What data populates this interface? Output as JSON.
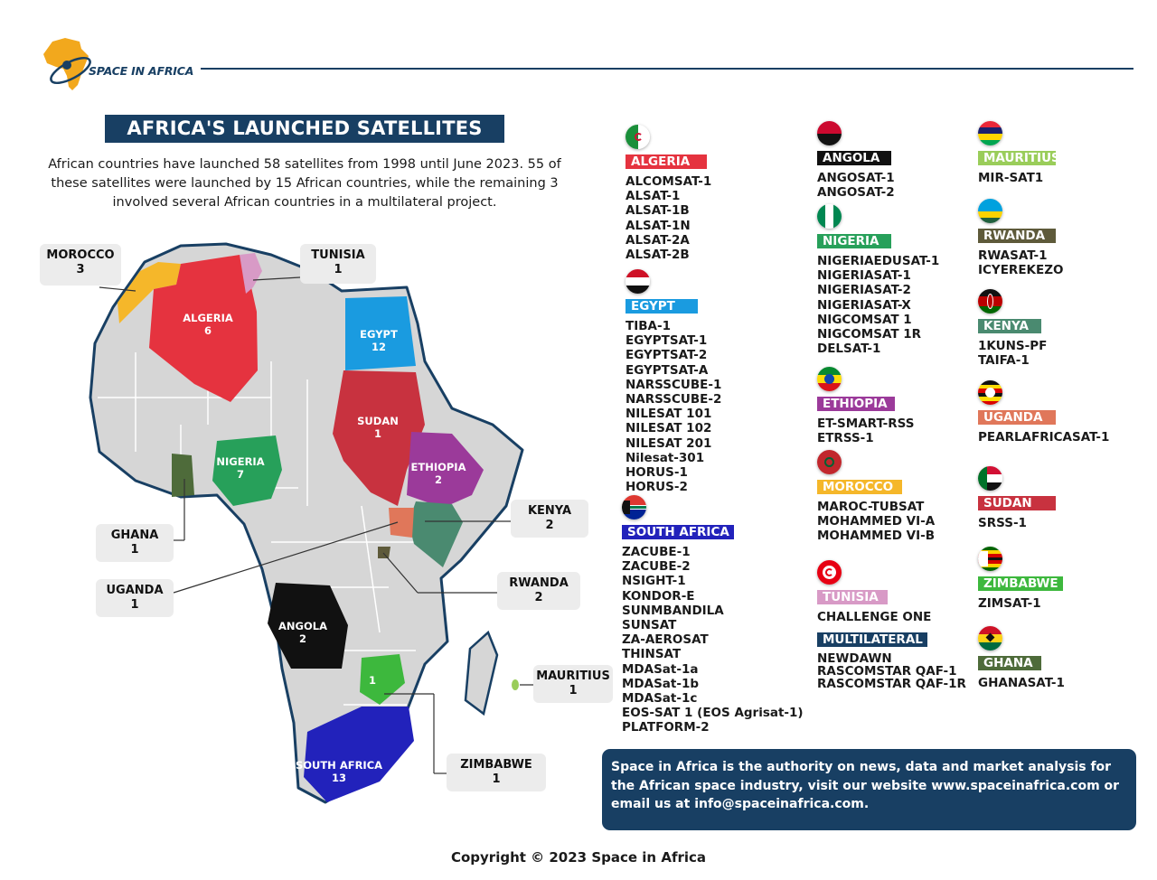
{
  "brand": {
    "name": "SPACE IN AFRICA"
  },
  "title": "AFRICA'S LAUNCHED SATELLITES",
  "intro": "African countries have launched 58 satellites from 1998 until June 2023. 55 of these satellites were launched by 15 African countries, while the remaining 3 involved several African countries in a multilateral project.",
  "map_labels": {
    "algeria": {
      "name": "ALGERIA",
      "count": "6"
    },
    "egypt": {
      "name": "EGYPT",
      "count": "12"
    },
    "sudan": {
      "name": "SUDAN",
      "count": "1"
    },
    "ethiopia": {
      "name": "ETHIOPIA",
      "count": "2"
    },
    "nigeria": {
      "name": "NIGERIA",
      "count": "7"
    },
    "angola": {
      "name": "ANGOLA",
      "count": "2"
    },
    "south_africa": {
      "name": "SOUTH AFRICA",
      "count": "13"
    },
    "zimbabwe": {
      "count": "1"
    }
  },
  "callouts": {
    "morocco": {
      "name": "MOROCCO",
      "count": "3"
    },
    "tunisia": {
      "name": "TUNISIA",
      "count": "1"
    },
    "ghana": {
      "name": "GHANA",
      "count": "1"
    },
    "uganda": {
      "name": "UGANDA",
      "count": "1"
    },
    "kenya": {
      "name": "KENYA",
      "count": "2"
    },
    "rwanda": {
      "name": "RWANDA",
      "count": "2"
    },
    "mauritius": {
      "name": "MAURITIUS",
      "count": "1"
    },
    "zimbabwe": {
      "name": "ZIMBABWE",
      "count": "1"
    }
  },
  "colors": {
    "navy": "#183f63",
    "algeria": "#e5333f",
    "egypt": "#1a9be0",
    "sudan": "#c8323f",
    "ethiopia": "#9b3a9a",
    "nigeria": "#27a05a",
    "angola": "#111111",
    "south_africa": "#2222bb",
    "zimbabwe": "#3db83d",
    "morocco": "#f5b72a",
    "tunisia": "#d89ac6",
    "ghana": "#4e6b3a",
    "uganda": "#e0775a",
    "kenya": "#4a8a70",
    "rwanda": "#5e5a3a",
    "mauritius": "#9acd5a",
    "land": "#d6d6d6"
  },
  "countries": {
    "algeria": {
      "name": "ALGERIA",
      "satellites": [
        "ALCOMSAT-1",
        "ALSAT-1",
        "ALSAT-1B",
        "ALSAT-1N",
        "ALSAT-2A",
        "ALSAT-2B"
      ]
    },
    "egypt": {
      "name": "EGYPT",
      "satellites": [
        "TIBA-1",
        "EGYPTSAT-1",
        "EGYPTSAT-2",
        "EGYPTSAT-A",
        "NARSSCUBE-1",
        "NARSSCUBE-2",
        "NILESAT 101",
        "NILESAT 102",
        "NILESAT 201",
        "Nilesat-301",
        "HORUS-1",
        "HORUS-2"
      ]
    },
    "south_africa": {
      "name": "SOUTH AFRICA",
      "satellites": [
        "ZACUBE-1",
        "ZACUBE-2",
        "NSIGHT-1",
        "KONDOR-E",
        "SUNMBANDILA",
        "SUNSAT",
        "ZA-AEROSAT",
        "THINSAT",
        "MDASat-1a",
        "MDASat-1b",
        "MDASat-1c",
        "EOS-SAT 1 (EOS Agrisat-1)",
        "PLATFORM-2"
      ]
    },
    "angola": {
      "name": "ANGOLA",
      "satellites": [
        "ANGOSAT-1",
        "ANGOSAT-2"
      ]
    },
    "nigeria": {
      "name": "NIGERIA",
      "satellites": [
        "NIGERIAEDUSAT-1",
        "NIGERIASAT-1",
        "NIGERIASAT-2",
        "NIGERIASAT-X",
        "NIGCOMSAT 1",
        "NIGCOMSAT 1R",
        "DELSAT-1"
      ]
    },
    "ethiopia": {
      "name": "ETHIOPIA",
      "satellites": [
        "ET-SMART-RSS",
        "ETRSS-1"
      ]
    },
    "morocco": {
      "name": "MOROCCO",
      "satellites": [
        "MAROC-TUBSAT",
        "MOHAMMED VI-A",
        "MOHAMMED VI-B"
      ]
    },
    "tunisia": {
      "name": "TUNISIA",
      "satellites": [
        "CHALLENGE ONE"
      ]
    },
    "multilateral": {
      "name": "MULTILATERAL",
      "satellites": [
        "NEWDAWN",
        "RASCOMSTAR QAF-1",
        "RASCOMSTAR QAF-1R"
      ]
    },
    "mauritius": {
      "name": "MAURITIUS",
      "satellites": [
        "MIR-SAT1"
      ]
    },
    "rwanda": {
      "name": "RWANDA",
      "satellites": [
        "RWASAT-1",
        "ICYEREKEZO"
      ]
    },
    "kenya": {
      "name": "KENYA",
      "satellites": [
        "1KUNS-PF",
        "TAIFA-1"
      ]
    },
    "uganda": {
      "name": "UGANDA",
      "satellites": [
        "PEARLAFRICASAT-1"
      ]
    },
    "sudan": {
      "name": "SUDAN",
      "satellites": [
        "SRSS-1"
      ]
    },
    "zimbabwe": {
      "name": "ZIMBABWE",
      "satellites": [
        "ZIMSAT-1"
      ]
    },
    "ghana": {
      "name": "GHANA",
      "satellites": [
        "GHANASAT-1"
      ]
    }
  },
  "info_box": "Space in Africa is the authority on news, data and market analysis for the African space industry, visit our website www.spaceinafrica.com or email us at info@spaceinafrica.com.",
  "copyright": "Copyright  © 2023 Space in Africa"
}
